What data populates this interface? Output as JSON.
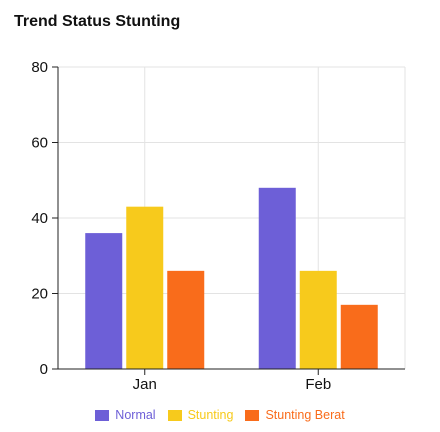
{
  "chart_data": {
    "type": "bar",
    "title": "Trend Status Stunting",
    "categories": [
      "Jan",
      "Feb"
    ],
    "series": [
      {
        "name": "Normal",
        "values": [
          36,
          48
        ],
        "color": "#6d5fd7"
      },
      {
        "name": "Stunting",
        "values": [
          43,
          26
        ],
        "color": "#f7ca1c"
      },
      {
        "name": "Stunting Berat",
        "values": [
          26,
          17
        ],
        "color": "#f96c1b"
      }
    ],
    "ylim": [
      0,
      80
    ],
    "yticks": [
      "0",
      "20",
      "40",
      "60",
      "80"
    ],
    "grid": true,
    "legend_position": "bottom"
  }
}
